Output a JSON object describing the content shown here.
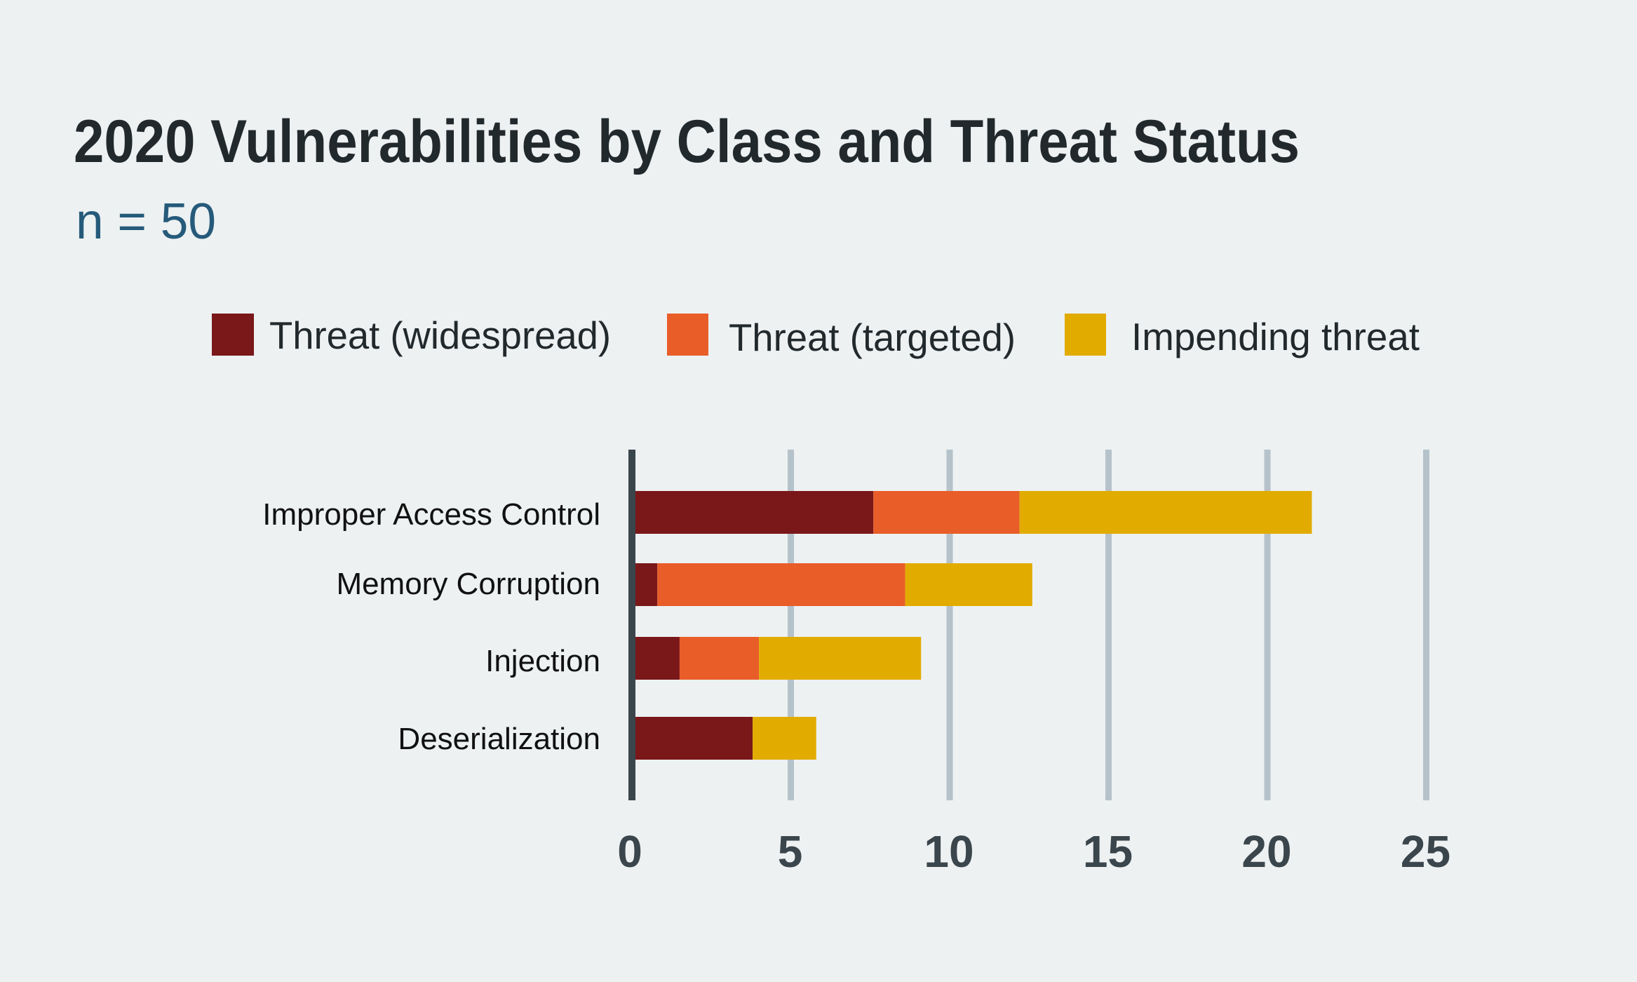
{
  "chart_data": {
    "type": "bar",
    "orientation": "horizontal",
    "stacked": true,
    "title": "2020 Vulnerabilities by Class and Threat Status",
    "subtitle": "n = 50",
    "xlabel": "",
    "ylabel": "",
    "xlim": [
      0,
      25
    ],
    "x_ticks": [
      0,
      5,
      10,
      15,
      20,
      25
    ],
    "x_tick_labels": [
      "0",
      "5",
      "10",
      "15",
      "20",
      "25"
    ],
    "grid": true,
    "legend_position": "top",
    "categories": [
      "Improper Access Control",
      "Memory Corruption",
      "Injection",
      "Deserialization"
    ],
    "series": [
      {
        "name": "Threat (widespread)",
        "color": "#7a1719",
        "values": [
          7.6,
          0.8,
          1.5,
          3.8
        ]
      },
      {
        "name": "Threat (targeted)",
        "color": "#e95d29",
        "values": [
          4.6,
          7.8,
          2.5,
          0
        ]
      },
      {
        "name": "Impending threat",
        "color": "#e2ab00",
        "values": [
          9.2,
          4.0,
          5.1,
          2.0
        ]
      }
    ]
  },
  "colors": {
    "background": "#edf1f2",
    "title": "#22292d",
    "subtitle": "#265a7a",
    "axis": "#3b454c",
    "gridline": "#b5c2ca"
  }
}
